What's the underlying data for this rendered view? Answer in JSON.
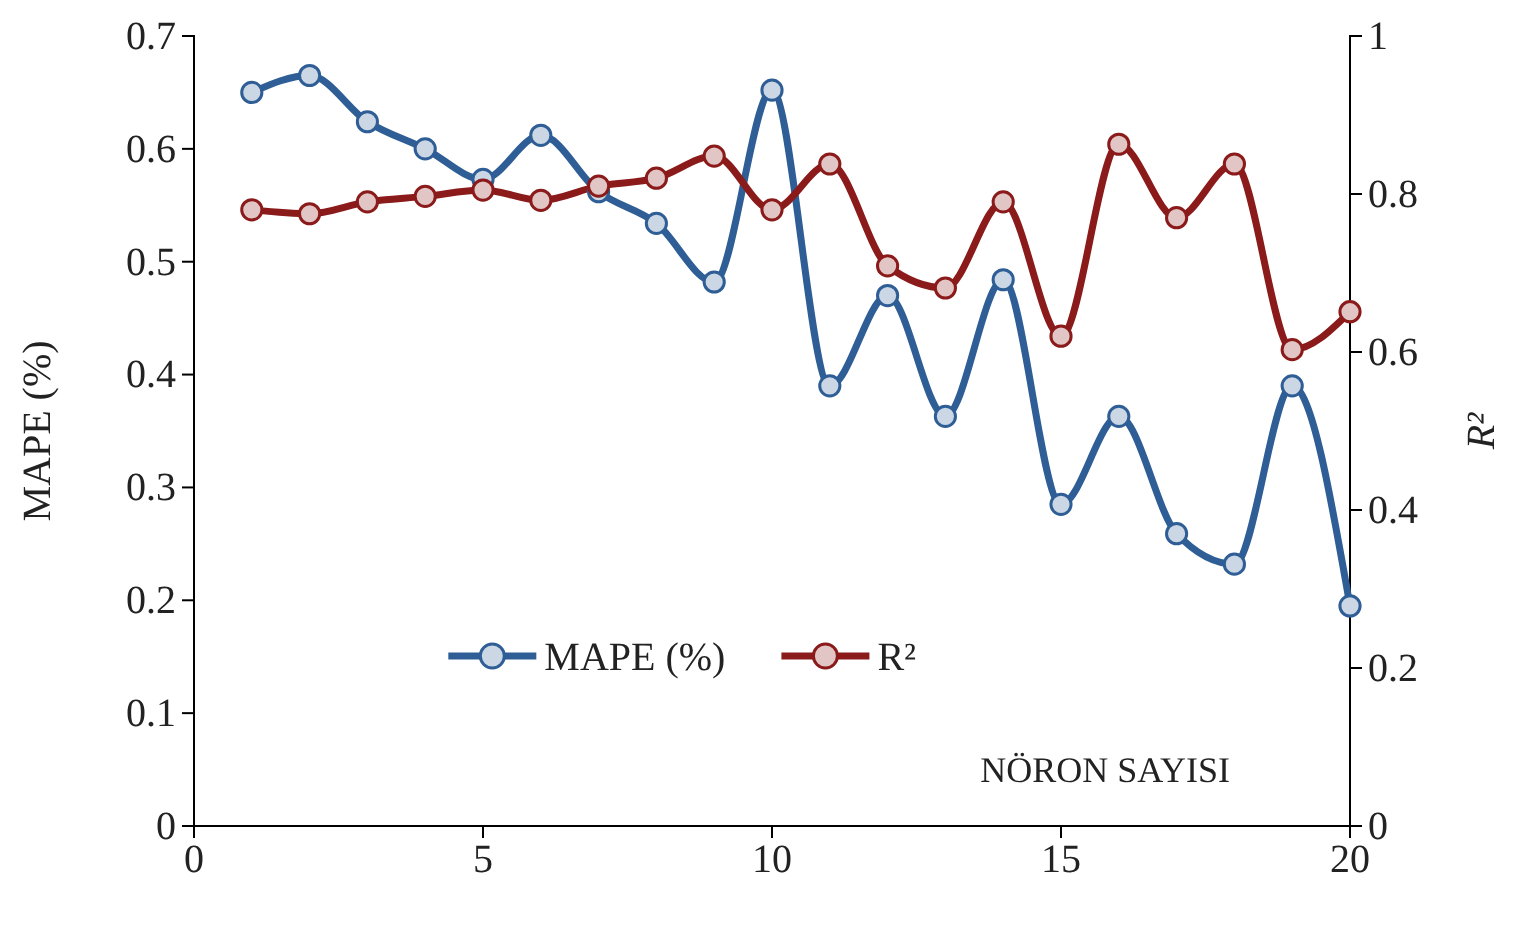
{
  "chart_data": {
    "type": "line",
    "xlabel": "NÖRON SAYISI",
    "ylabel": "MAPE (%)",
    "y2label": "R²",
    "x": [
      1,
      2,
      3,
      4,
      5,
      6,
      7,
      8,
      9,
      10,
      11,
      12,
      13,
      14,
      15,
      16,
      17,
      18,
      19,
      20
    ],
    "xlim": [
      0,
      20
    ],
    "xticks": [
      0,
      5,
      10,
      15,
      20
    ],
    "ylim": [
      0,
      0.7
    ],
    "yticks": [
      0,
      0.1,
      0.2,
      0.3,
      0.4,
      0.5,
      0.6,
      0.7
    ],
    "y2lim": [
      0,
      1
    ],
    "y2ticks": [
      0,
      0.2,
      0.4,
      0.6,
      0.8,
      1
    ],
    "series": [
      {
        "name": "MAPE (%)",
        "color": "#2e5e95",
        "values": [
          0.65,
          0.665,
          0.624,
          0.6,
          0.573,
          0.612,
          0.562,
          0.534,
          0.482,
          0.652,
          0.39,
          0.47,
          0.363,
          0.484,
          0.285,
          0.363,
          0.259,
          0.232,
          0.39,
          0.195
        ]
      },
      {
        "name": "R²",
        "color": "#8b1a1a",
        "axis": "y2",
        "values": [
          0.78,
          0.775,
          0.79,
          0.797,
          0.805,
          0.792,
          0.81,
          0.82,
          0.848,
          0.78,
          0.838,
          0.709,
          0.681,
          0.79,
          0.62,
          0.863,
          0.77,
          0.838,
          0.603,
          0.651
        ]
      }
    ],
    "marker": "circle",
    "line_style": "solid",
    "legend": "bottom",
    "grid": false
  }
}
